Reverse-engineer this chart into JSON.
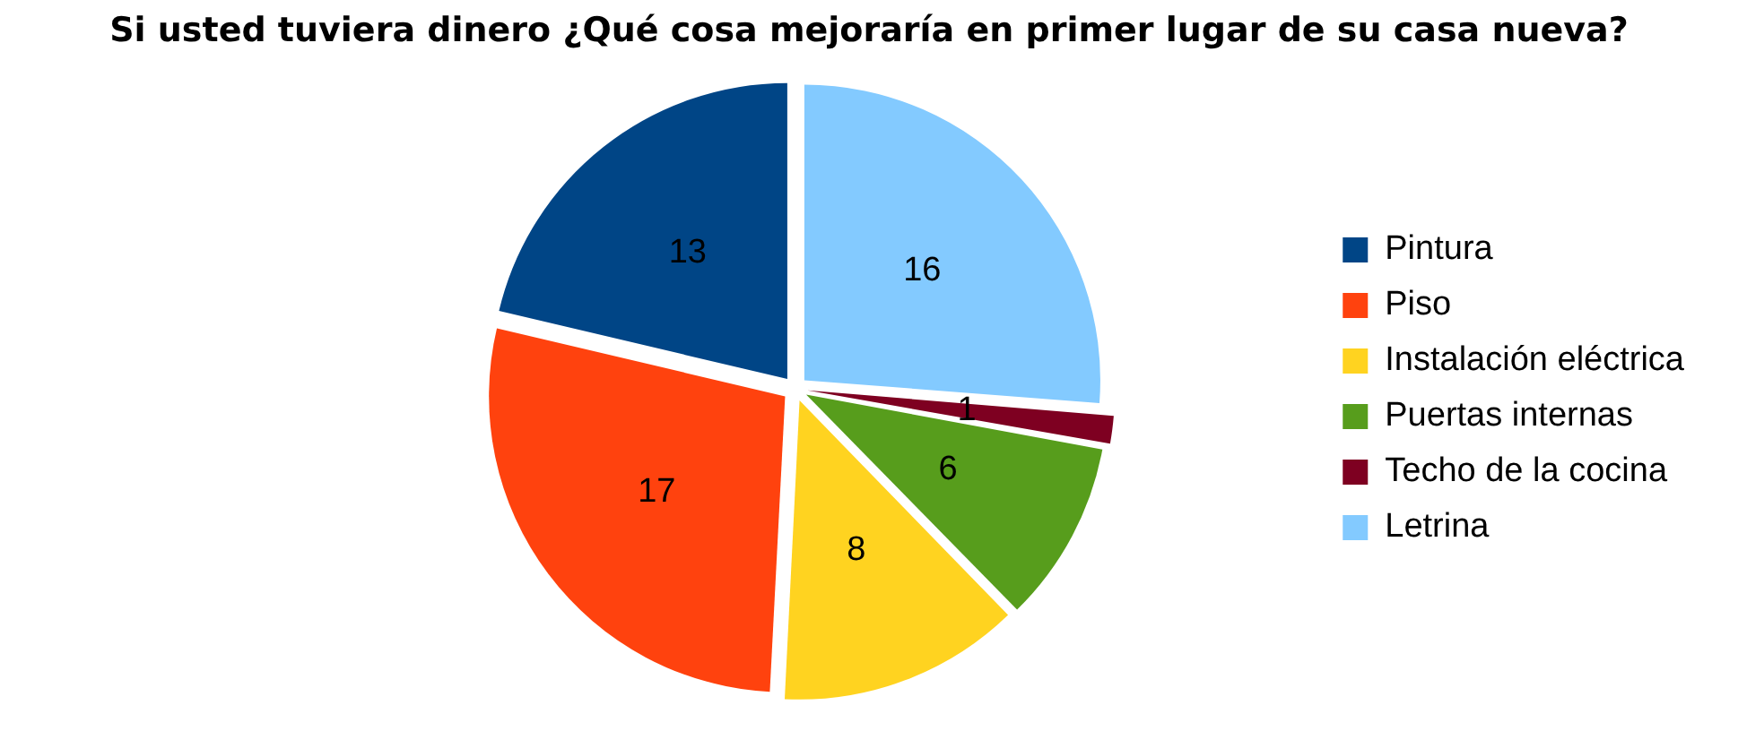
{
  "chart_data": {
    "type": "pie",
    "title": "Si usted tuviera dinero ¿Qué cosa mejoraría en primer lugar de su casa nueva?",
    "categories": [
      "Pintura",
      "Piso",
      "Instalación eléctrica",
      "Puertas internas",
      "Techo de la cocina",
      "Letrina"
    ],
    "values": [
      13,
      17,
      8,
      6,
      1,
      16
    ],
    "colors": [
      "#004586",
      "#ff420e",
      "#ffd320",
      "#579d1c",
      "#7e0021",
      "#83caff"
    ],
    "data_labels": true,
    "legend": "right"
  }
}
